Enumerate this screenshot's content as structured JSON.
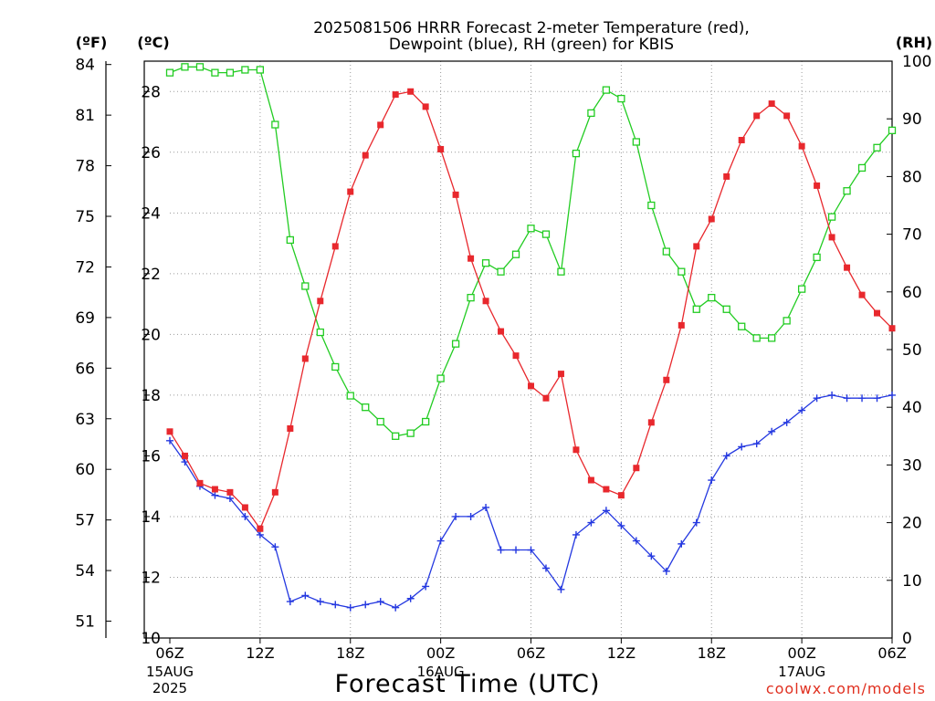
{
  "chart_data": {
    "type": "line",
    "title_lines": [
      "2025081506 HRRR Forecast 2-meter Temperature (red),",
      "Dewpoint (blue), RH (green) for KBIS"
    ],
    "xlabel": "Forecast Time (UTC)",
    "unit_labels": {
      "left_outer": "(ºF)",
      "left_inner": "(ºC)",
      "right": "(RH)"
    },
    "watermark": "coolwx.com/models",
    "grid": true,
    "x_range_hours": [
      0,
      48
    ],
    "x_ticks": [
      {
        "h": 0,
        "label": "06Z",
        "date": "15AUG",
        "year": "2025"
      },
      {
        "h": 6,
        "label": "12Z",
        "date": "",
        "year": ""
      },
      {
        "h": 12,
        "label": "18Z",
        "date": "",
        "year": ""
      },
      {
        "h": 18,
        "label": "00Z",
        "date": "16AUG",
        "year": ""
      },
      {
        "h": 24,
        "label": "06Z",
        "date": "",
        "year": ""
      },
      {
        "h": 30,
        "label": "12Z",
        "date": "",
        "year": ""
      },
      {
        "h": 36,
        "label": "18Z",
        "date": "",
        "year": ""
      },
      {
        "h": 42,
        "label": "00Z",
        "date": "17AUG",
        "year": ""
      },
      {
        "h": 48,
        "label": "06Z",
        "date": "",
        "year": ""
      }
    ],
    "y_celsius": {
      "range": [
        10,
        29
      ],
      "ticks": [
        10,
        12,
        14,
        16,
        18,
        20,
        22,
        24,
        26,
        28
      ]
    },
    "y_fahrenheit": {
      "range": [
        50,
        84.2
      ],
      "ticks": [
        51,
        54,
        57,
        60,
        63,
        66,
        69,
        72,
        75,
        78,
        81,
        84
      ]
    },
    "y_rh": {
      "range": [
        0,
        100
      ],
      "ticks": [
        0,
        10,
        20,
        30,
        40,
        50,
        60,
        70,
        80,
        90,
        100
      ]
    },
    "series": [
      {
        "name": "Temperature (°C)",
        "color": "#e8282d",
        "axis": "celsius",
        "marker": "filled-square",
        "values": [
          16.8,
          16.0,
          15.1,
          14.9,
          14.8,
          14.3,
          13.6,
          14.8,
          16.9,
          19.2,
          21.1,
          22.9,
          24.7,
          25.9,
          26.9,
          27.9,
          28.0,
          27.5,
          26.1,
          24.6,
          22.5,
          21.1,
          20.1,
          19.3,
          18.3,
          17.9,
          18.7,
          16.2,
          15.2,
          14.9,
          14.7,
          15.6,
          17.1,
          18.5,
          20.3,
          22.9,
          23.8,
          25.2,
          26.4,
          27.2,
          27.6,
          27.2,
          26.2,
          24.9,
          23.2,
          22.2,
          21.3,
          20.7,
          20.2
        ]
      },
      {
        "name": "Dewpoint (°C)",
        "color": "#2438e0",
        "axis": "celsius",
        "marker": "plus",
        "values": [
          16.5,
          15.8,
          15.0,
          14.7,
          14.6,
          14.0,
          13.4,
          13.0,
          11.2,
          11.4,
          11.2,
          11.1,
          11.0,
          11.1,
          11.2,
          11.0,
          11.3,
          11.7,
          13.2,
          14.0,
          14.0,
          14.3,
          12.9,
          12.9,
          12.9,
          12.3,
          11.6,
          13.4,
          13.8,
          14.2,
          13.7,
          13.2,
          12.7,
          12.2,
          13.1,
          13.8,
          15.2,
          16.0,
          16.3,
          16.4,
          16.8,
          17.1,
          17.5,
          17.9,
          18.0,
          17.9,
          17.9,
          17.9,
          18.0
        ]
      },
      {
        "name": "RH (%)",
        "color": "#22cc22",
        "axis": "rh",
        "marker": "open-square",
        "values": [
          98,
          99,
          99,
          98,
          98,
          98.5,
          98.5,
          89,
          69,
          61,
          53,
          47,
          42,
          40,
          37.5,
          35,
          35.5,
          37.5,
          45,
          51,
          59,
          65,
          63.5,
          66.5,
          71,
          70,
          63.5,
          84,
          91,
          95,
          93.5,
          86,
          75,
          67,
          63.5,
          57,
          59,
          57,
          54,
          52,
          52,
          55,
          60.5,
          66,
          73,
          77.5,
          81.5,
          85,
          88
        ]
      }
    ]
  }
}
